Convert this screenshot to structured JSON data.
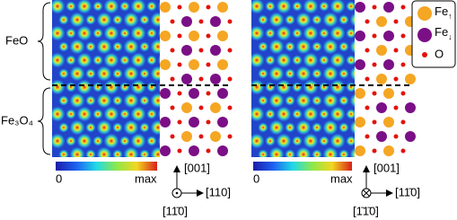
{
  "labels": {
    "feo": "FeO",
    "fe3o4": "Fe₃O₄"
  },
  "panels": [
    {
      "colorbar": {
        "min": "0",
        "max": "max"
      },
      "axes": {
        "up": "[001]",
        "right": "[110]",
        "out": "[11̄0]"
      }
    },
    {
      "colorbar": {
        "min": "0",
        "max": "max"
      },
      "axes": {
        "up": "[001]",
        "right": "[11̄0]",
        "out": "[1̄1̄0]"
      }
    }
  ],
  "legend": [
    {
      "label": "Fe",
      "sub": "↑"
    },
    {
      "label": "Fe",
      "sub": "↓"
    },
    {
      "label": "O"
    }
  ]
}
